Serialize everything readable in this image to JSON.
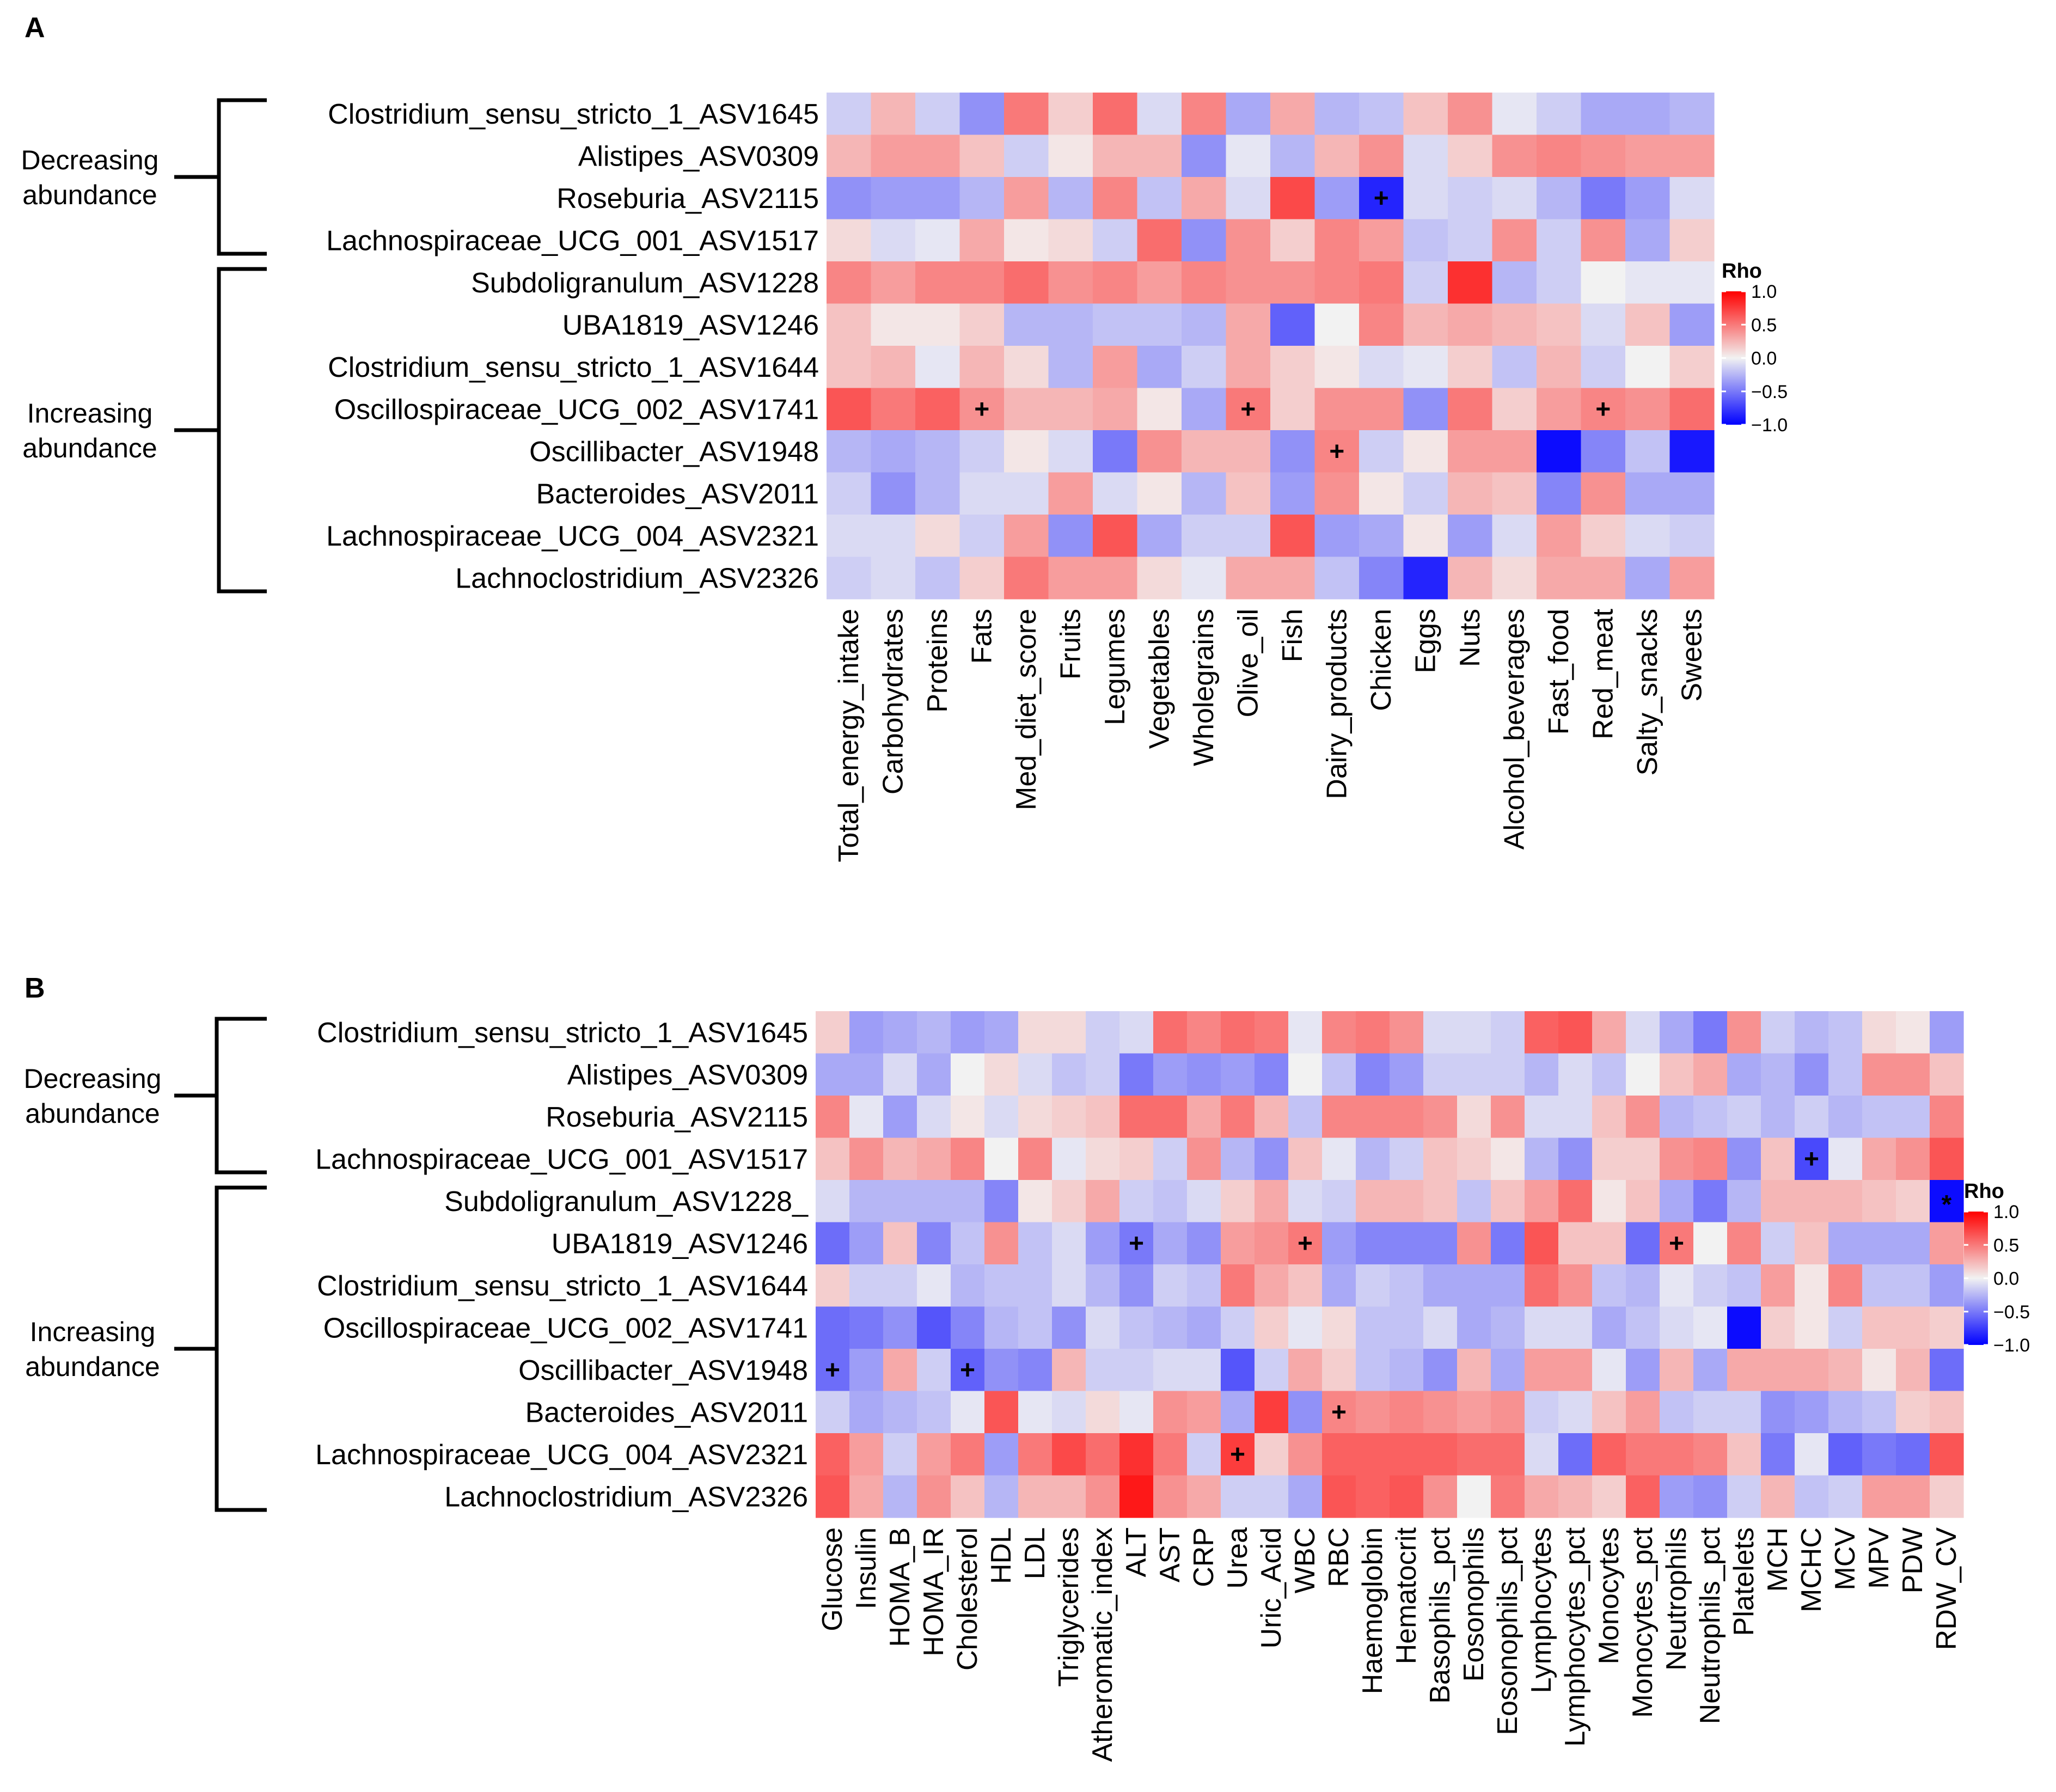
{
  "colors": {
    "negative": "#0000ff",
    "neutral": "#f2f2f2",
    "positive": "#ff0000"
  },
  "chart_data": [
    {
      "type": "heatmap",
      "panel_label": "A",
      "legend": {
        "title": "Rho",
        "ticks": [
          "1.0",
          "0.5",
          "0.0",
          "−0.5",
          "−1.0"
        ],
        "tick_values": [
          1.0,
          0.5,
          0.0,
          -0.5,
          -1.0
        ],
        "range": [
          -1,
          1
        ]
      },
      "groups": [
        {
          "label_line1": "Decreasing",
          "label_line2": "abundance",
          "row_start": 0,
          "row_end": 3
        },
        {
          "label_line1": "Increasing",
          "label_line2": "abundance",
          "row_start": 4,
          "row_end": 11
        }
      ],
      "rows": [
        "Clostridium_sensu_stricto_1_ASV1645",
        "Alistipes_ASV0309",
        "Roseburia_ASV2115",
        "Lachnospiraceae_UCG_001_ASV1517",
        "Subdoligranulum_ASV1228",
        "UBA1819_ASV1246",
        "Clostridium_sensu_stricto_1_ASV1644",
        "Oscillospiraceae_UCG_002_ASV1741",
        "Oscillibacter_ASV1948",
        "Bacteroides_ASV2011",
        "Lachnospiraceae_UCG_004_ASV2321",
        "Lachnoclostridium_ASV2326"
      ],
      "columns": [
        "Total_energy_intake",
        "Carbohydrates",
        "Proteins",
        "Fats",
        "Med_diet_score",
        "Fruits",
        "Legumes",
        "Vegetables",
        "Wholegrains",
        "Olive_oil",
        "Fish",
        "Dairy_products",
        "Chicken",
        "Eggs",
        "Nuts",
        "Alcohol_beverages",
        "Fast_food",
        "Red_meat",
        "Salty_snacks",
        "Sweets"
      ],
      "values": [
        [
          -0.15,
          0.25,
          -0.15,
          -0.4,
          0.5,
          0.15,
          0.55,
          -0.1,
          0.45,
          -0.3,
          0.3,
          -0.25,
          -0.2,
          0.2,
          0.4,
          -0.05,
          -0.15,
          -0.3,
          -0.3,
          -0.25
        ],
        [
          0.25,
          0.35,
          0.35,
          0.2,
          -0.15,
          0.05,
          0.25,
          0.25,
          -0.4,
          -0.05,
          -0.25,
          0.25,
          0.4,
          -0.1,
          0.15,
          0.4,
          0.45,
          0.4,
          0.35,
          0.35
        ],
        [
          -0.4,
          -0.35,
          -0.35,
          -0.25,
          0.35,
          -0.25,
          0.45,
          -0.2,
          0.3,
          -0.1,
          0.7,
          -0.35,
          -0.85,
          -0.1,
          -0.15,
          -0.1,
          -0.25,
          -0.5,
          -0.35,
          -0.1
        ],
        [
          0.1,
          -0.1,
          -0.05,
          0.3,
          0.05,
          0.1,
          -0.15,
          0.55,
          -0.4,
          0.4,
          0.15,
          0.45,
          0.35,
          -0.2,
          -0.15,
          0.4,
          -0.15,
          0.4,
          -0.3,
          0.15
        ],
        [
          0.45,
          0.35,
          0.45,
          0.45,
          0.55,
          0.4,
          0.45,
          0.35,
          0.45,
          0.4,
          0.4,
          0.45,
          0.5,
          -0.15,
          0.8,
          -0.25,
          -0.15,
          0.0,
          -0.05,
          -0.05
        ],
        [
          0.2,
          0.05,
          0.05,
          0.15,
          -0.25,
          -0.25,
          -0.2,
          -0.2,
          -0.25,
          0.3,
          -0.6,
          0.0,
          0.45,
          0.25,
          0.3,
          0.25,
          0.2,
          -0.1,
          0.2,
          -0.35
        ],
        [
          0.2,
          0.25,
          -0.05,
          0.25,
          0.1,
          -0.25,
          0.35,
          -0.3,
          -0.15,
          0.3,
          0.15,
          0.05,
          -0.1,
          -0.05,
          0.15,
          -0.2,
          0.25,
          -0.15,
          0.0,
          0.15
        ],
        [
          0.65,
          0.5,
          0.6,
          0.4,
          0.25,
          0.25,
          0.3,
          0.05,
          -0.3,
          0.5,
          0.15,
          0.4,
          0.4,
          -0.4,
          0.5,
          0.15,
          0.35,
          0.45,
          0.4,
          0.55
        ],
        [
          -0.25,
          -0.3,
          -0.25,
          -0.15,
          0.05,
          -0.1,
          -0.5,
          0.4,
          0.25,
          0.25,
          -0.4,
          0.45,
          -0.15,
          0.05,
          0.35,
          0.35,
          -0.95,
          -0.45,
          -0.2,
          -0.9
        ],
        [
          -0.15,
          -0.4,
          -0.25,
          -0.1,
          -0.1,
          0.35,
          -0.1,
          0.05,
          -0.25,
          0.2,
          -0.35,
          0.4,
          0.05,
          -0.15,
          0.25,
          0.2,
          -0.45,
          0.4,
          -0.3,
          -0.3
        ],
        [
          -0.1,
          -0.1,
          0.1,
          -0.15,
          0.35,
          -0.4,
          0.65,
          -0.3,
          -0.15,
          -0.15,
          0.65,
          -0.35,
          -0.3,
          0.05,
          -0.35,
          -0.1,
          0.35,
          0.15,
          -0.1,
          -0.15
        ],
        [
          -0.15,
          -0.1,
          -0.2,
          0.15,
          0.5,
          0.35,
          0.35,
          0.1,
          -0.05,
          0.3,
          0.3,
          -0.2,
          -0.45,
          -0.85,
          0.25,
          0.1,
          0.3,
          0.3,
          -0.3,
          0.35
        ]
      ],
      "marks": [
        {
          "row": 2,
          "col": 12,
          "symbol": "+"
        },
        {
          "row": 7,
          "col": 3,
          "symbol": "+"
        },
        {
          "row": 7,
          "col": 9,
          "symbol": "+"
        },
        {
          "row": 7,
          "col": 17,
          "symbol": "+"
        },
        {
          "row": 8,
          "col": 11,
          "symbol": "+"
        }
      ]
    },
    {
      "type": "heatmap",
      "panel_label": "B",
      "legend": {
        "title": "Rho",
        "ticks": [
          "1.0",
          "0.5",
          "0.0",
          "−0.5",
          "−1.0"
        ],
        "tick_values": [
          1.0,
          0.5,
          0.0,
          -0.5,
          -1.0
        ],
        "range": [
          -1,
          1
        ]
      },
      "groups": [
        {
          "label_line1": "Decreasing",
          "label_line2": "abundance",
          "row_start": 0,
          "row_end": 3
        },
        {
          "label_line1": "Increasing",
          "label_line2": "abundance",
          "row_start": 4,
          "row_end": 11
        }
      ],
      "rows": [
        "Clostridium_sensu_stricto_1_ASV1645",
        "Alistipes_ASV0309",
        "Roseburia_ASV2115",
        "Lachnospiraceae_UCG_001_ASV1517",
        "Subdoligranulum_ASV1228_",
        "UBA1819_ASV1246",
        "Clostridium_sensu_stricto_1_ASV1644",
        "Oscillospiraceae_UCG_002_ASV1741",
        "Oscillibacter_ASV1948",
        "Bacteroides_ASV2011",
        "Lachnospiraceae_UCG_004_ASV2321",
        "Lachnoclostridium_ASV2326"
      ],
      "columns": [
        "Glucose",
        "Insulin",
        "HOMA_B",
        "HOMA_IR",
        "Cholesterol",
        "HDL",
        "LDL",
        "Triglycerides",
        "Atheromatic_index",
        "ALT",
        "AST",
        "CRP",
        "Urea",
        "Uric_Acid",
        "WBC",
        "RBC",
        "Haemoglobin",
        "Hematocrit",
        "Basophils_pct",
        "Eosonophils",
        "Eosonophils_pct",
        "Lymphocytes",
        "Lymphocytes_pct",
        "Monocytes",
        "Monocytes_pct",
        "Neutrophils",
        "Neutrophils_pct",
        "Platelets",
        "MCH",
        "MCHC",
        "MCV",
        "MPV",
        "PDW",
        "RDW_CV"
      ],
      "values": [
        [
          0.15,
          -0.35,
          -0.3,
          -0.25,
          -0.35,
          -0.3,
          0.1,
          0.1,
          -0.15,
          -0.1,
          0.55,
          0.45,
          0.55,
          0.5,
          -0.05,
          0.45,
          0.5,
          0.4,
          -0.1,
          -0.1,
          -0.15,
          0.6,
          0.65,
          0.3,
          -0.1,
          -0.3,
          -0.5,
          0.4,
          -0.15,
          -0.25,
          -0.2,
          0.1,
          0.05,
          -0.35
        ],
        [
          -0.3,
          -0.3,
          -0.1,
          -0.3,
          0.0,
          0.1,
          -0.1,
          -0.2,
          -0.15,
          -0.5,
          -0.35,
          -0.4,
          -0.35,
          -0.45,
          0.0,
          -0.2,
          -0.45,
          -0.35,
          -0.15,
          -0.15,
          -0.15,
          -0.25,
          -0.1,
          -0.2,
          0.0,
          0.2,
          0.3,
          -0.3,
          -0.25,
          -0.4,
          -0.2,
          0.4,
          0.4,
          0.2
        ],
        [
          0.45,
          -0.05,
          -0.35,
          -0.1,
          0.05,
          -0.1,
          0.1,
          0.15,
          0.2,
          0.55,
          0.55,
          0.3,
          0.5,
          0.25,
          -0.2,
          0.45,
          0.45,
          0.45,
          0.4,
          0.1,
          0.4,
          -0.1,
          -0.1,
          0.2,
          0.4,
          -0.25,
          -0.2,
          -0.15,
          -0.25,
          -0.15,
          -0.25,
          -0.2,
          -0.2,
          0.45
        ],
        [
          0.2,
          0.4,
          0.25,
          0.3,
          0.45,
          0.0,
          0.45,
          -0.05,
          0.1,
          0.15,
          -0.15,
          0.4,
          -0.25,
          -0.4,
          0.2,
          -0.05,
          -0.25,
          -0.15,
          0.2,
          0.15,
          0.05,
          -0.25,
          -0.4,
          0.15,
          0.15,
          0.4,
          0.45,
          -0.4,
          0.2,
          -0.7,
          -0.05,
          0.3,
          0.4,
          0.65
        ],
        [
          -0.1,
          -0.25,
          -0.25,
          -0.25,
          -0.25,
          -0.45,
          0.05,
          0.15,
          0.3,
          -0.15,
          -0.2,
          -0.1,
          0.15,
          0.3,
          -0.1,
          -0.15,
          0.25,
          0.25,
          0.2,
          -0.2,
          0.2,
          0.35,
          0.55,
          0.05,
          0.2,
          -0.3,
          -0.5,
          -0.25,
          0.25,
          0.25,
          0.25,
          0.2,
          0.15,
          -0.95
        ],
        [
          -0.55,
          -0.35,
          0.2,
          -0.45,
          -0.2,
          0.4,
          -0.2,
          -0.1,
          -0.35,
          -0.5,
          -0.3,
          -0.4,
          0.35,
          0.4,
          0.5,
          -0.35,
          -0.45,
          -0.45,
          -0.45,
          0.4,
          -0.5,
          0.65,
          0.2,
          0.2,
          -0.55,
          0.5,
          0.0,
          0.45,
          -0.15,
          0.2,
          -0.3,
          -0.3,
          -0.3,
          0.35
        ],
        [
          0.15,
          -0.15,
          -0.15,
          -0.05,
          -0.25,
          -0.2,
          -0.2,
          -0.1,
          -0.25,
          -0.4,
          -0.15,
          -0.2,
          0.5,
          0.3,
          0.2,
          -0.3,
          -0.15,
          -0.2,
          -0.3,
          -0.3,
          -0.3,
          0.55,
          0.4,
          -0.2,
          -0.25,
          -0.05,
          -0.15,
          -0.2,
          0.35,
          0.05,
          0.45,
          -0.2,
          -0.2,
          -0.35
        ],
        [
          -0.55,
          -0.5,
          -0.4,
          -0.65,
          -0.45,
          -0.25,
          -0.2,
          -0.4,
          -0.1,
          -0.2,
          -0.25,
          -0.3,
          -0.15,
          0.15,
          -0.05,
          0.1,
          -0.2,
          -0.2,
          -0.1,
          -0.3,
          -0.25,
          -0.1,
          -0.1,
          -0.3,
          -0.2,
          -0.1,
          -0.05,
          -0.95,
          0.15,
          0.05,
          -0.15,
          0.2,
          0.2,
          0.15
        ],
        [
          -0.55,
          -0.35,
          0.3,
          -0.15,
          -0.6,
          -0.4,
          -0.45,
          0.25,
          -0.15,
          -0.15,
          -0.1,
          -0.1,
          -0.65,
          -0.15,
          0.3,
          0.15,
          -0.2,
          -0.25,
          -0.4,
          0.25,
          -0.3,
          0.35,
          0.35,
          -0.05,
          -0.35,
          0.25,
          -0.3,
          0.3,
          0.3,
          0.3,
          0.25,
          0.05,
          0.25,
          -0.55
        ],
        [
          -0.15,
          -0.3,
          -0.25,
          -0.2,
          -0.05,
          0.65,
          -0.05,
          -0.1,
          0.1,
          -0.05,
          0.4,
          0.35,
          -0.3,
          0.75,
          -0.4,
          0.45,
          0.4,
          0.45,
          0.4,
          0.35,
          0.4,
          -0.15,
          -0.1,
          0.2,
          0.35,
          -0.2,
          -0.15,
          -0.15,
          -0.4,
          -0.35,
          -0.25,
          -0.2,
          0.15,
          0.2
        ],
        [
          0.6,
          0.35,
          -0.15,
          0.35,
          0.5,
          -0.35,
          0.5,
          0.7,
          0.55,
          0.8,
          0.5,
          -0.15,
          0.75,
          0.15,
          0.4,
          0.6,
          0.6,
          0.6,
          0.6,
          0.55,
          0.55,
          -0.1,
          -0.55,
          0.6,
          0.5,
          0.5,
          0.45,
          0.2,
          -0.5,
          -0.05,
          -0.6,
          -0.5,
          -0.55,
          0.65
        ],
        [
          0.65,
          0.3,
          -0.25,
          0.4,
          0.2,
          -0.25,
          0.25,
          0.25,
          0.4,
          0.9,
          0.4,
          0.3,
          -0.15,
          -0.15,
          -0.3,
          0.65,
          0.6,
          0.65,
          0.4,
          0.0,
          0.5,
          0.3,
          0.25,
          0.15,
          0.6,
          -0.35,
          -0.4,
          -0.15,
          0.25,
          -0.2,
          -0.15,
          0.35,
          0.35,
          0.15
        ]
      ],
      "marks": [
        {
          "row": 3,
          "col": 29,
          "symbol": "+"
        },
        {
          "row": 4,
          "col": 33,
          "symbol": "*"
        },
        {
          "row": 5,
          "col": 9,
          "symbol": "+"
        },
        {
          "row": 5,
          "col": 14,
          "symbol": "+"
        },
        {
          "row": 5,
          "col": 25,
          "symbol": "+"
        },
        {
          "row": 8,
          "col": 0,
          "symbol": "+"
        },
        {
          "row": 8,
          "col": 4,
          "symbol": "+"
        },
        {
          "row": 9,
          "col": 15,
          "symbol": "+"
        },
        {
          "row": 10,
          "col": 12,
          "symbol": "+"
        }
      ]
    }
  ]
}
